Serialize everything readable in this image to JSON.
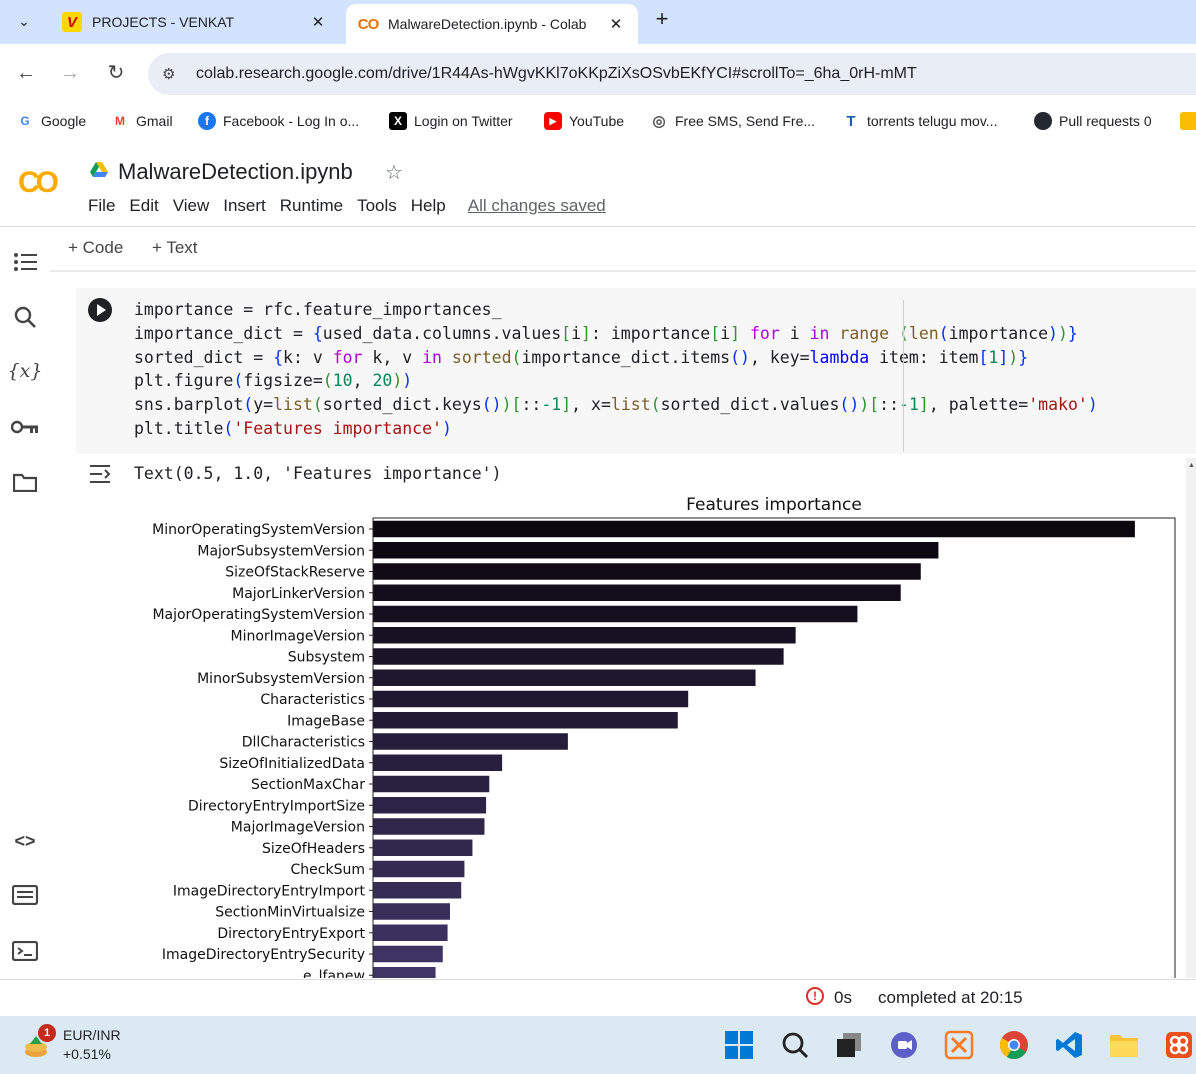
{
  "browser": {
    "tabs": [
      {
        "title": "PROJECTS - VENKAT",
        "favicon": "V",
        "active": false
      },
      {
        "title": "MalwareDetection.ipynb - Colab",
        "favicon": "CO",
        "active": true
      }
    ],
    "url": "colab.research.google.com/drive/1R44As-hWgvKKl7oKKpZiXsOSvbEKfYCI#scrollTo=_6ha_0rH-mMT",
    "bookmarks": [
      {
        "label": "Google",
        "icon": "G"
      },
      {
        "label": "Gmail",
        "icon": "M"
      },
      {
        "label": "Facebook - Log In o...",
        "icon": "f"
      },
      {
        "label": "Login on Twitter",
        "icon": "X"
      },
      {
        "label": "YouTube",
        "icon": "▶"
      },
      {
        "label": "Free SMS, Send Fre...",
        "icon": "◎"
      },
      {
        "label": "torrents telugu mov...",
        "icon": "T"
      },
      {
        "label": "Pull requests 0",
        "icon": "●"
      }
    ]
  },
  "colab": {
    "logo": "CO",
    "notebook_title": "MalwareDetection.ipynb",
    "menu": [
      "File",
      "Edit",
      "View",
      "Insert",
      "Runtime",
      "Tools",
      "Help"
    ],
    "save_status": "All changes saved",
    "toolbar": {
      "code": "+ Code",
      "text": "+ Text"
    },
    "sidebar_icons": [
      "table-of-contents-icon",
      "search-icon",
      "variables-icon",
      "secrets-key-icon",
      "files-folder-icon",
      "code-snippets-icon",
      "command-palette-icon",
      "terminal-icon"
    ]
  },
  "cell": {
    "output_text": "Text(0.5, 1.0, 'Features importance')"
  },
  "chart_data": {
    "type": "bar",
    "orientation": "horizontal",
    "title": "Features importance",
    "xlabel": "",
    "ylabel": "",
    "palette": "mako",
    "xlim": [
      0,
      0.1
    ],
    "categories": [
      "MinorOperatingSystemVersion",
      "MajorSubsystemVersion",
      "SizeOfStackReserve",
      "MajorLinkerVersion",
      "MajorOperatingSystemVersion",
      "MinorImageVersion",
      "Subsystem",
      "MinorSubsystemVersion",
      "Characteristics",
      "ImageBase",
      "DllCharacteristics",
      "SizeOfInitializedData",
      "SectionMaxChar",
      "DirectoryEntryImportSize",
      "MajorImageVersion",
      "SizeOfHeaders",
      "CheckSum",
      "ImageDirectoryEntryImport",
      "SectionMinVirtualsize",
      "DirectoryEntryExport",
      "ImageDirectoryEntrySecurity",
      "e_lfanew"
    ],
    "values": [
      0.095,
      0.0705,
      0.0683,
      0.0658,
      0.0604,
      0.0527,
      0.0512,
      0.0477,
      0.0393,
      0.038,
      0.0243,
      0.0161,
      0.0145,
      0.0141,
      0.0139,
      0.0124,
      0.0114,
      0.011,
      0.0096,
      0.0093,
      0.0087,
      0.0078
    ]
  },
  "status": {
    "time": "0s",
    "completed": "completed at 20:15"
  },
  "taskbar": {
    "widget_name": "EUR/INR",
    "widget_change": "+0.51%",
    "badge": "1",
    "apps": [
      "windows-start-icon",
      "search-icon",
      "task-view-icon",
      "chat-icon",
      "xampp-icon",
      "chrome-icon",
      "vscode-icon",
      "file-explorer-icon",
      "app-icon"
    ]
  }
}
